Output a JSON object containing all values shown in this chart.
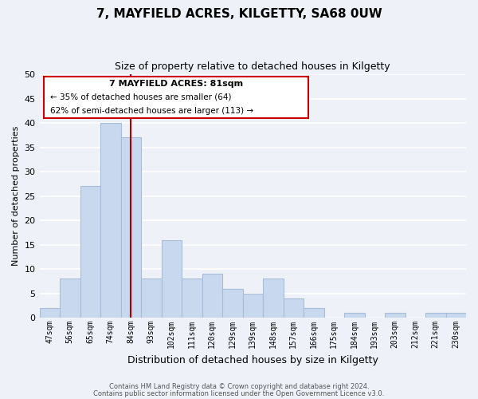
{
  "title": "7, MAYFIELD ACRES, KILGETTY, SA68 0UW",
  "subtitle": "Size of property relative to detached houses in Kilgetty",
  "xlabel": "Distribution of detached houses by size in Kilgetty",
  "ylabel": "Number of detached properties",
  "bar_labels": [
    "47sqm",
    "56sqm",
    "65sqm",
    "74sqm",
    "84sqm",
    "93sqm",
    "102sqm",
    "111sqm",
    "120sqm",
    "129sqm",
    "139sqm",
    "148sqm",
    "157sqm",
    "166sqm",
    "175sqm",
    "184sqm",
    "193sqm",
    "203sqm",
    "212sqm",
    "221sqm",
    "230sqm"
  ],
  "bar_values": [
    2,
    8,
    27,
    40,
    37,
    8,
    16,
    8,
    9,
    6,
    5,
    8,
    4,
    2,
    0,
    1,
    0,
    1,
    0,
    1,
    1
  ],
  "bar_color": "#c8d8ee",
  "bar_edge_color": "#a8bdd8",
  "highlight_bar_index": 4,
  "highlight_edge_color": "#cc0000",
  "vline_color": "#aa0000",
  "ylim": [
    0,
    50
  ],
  "yticks": [
    0,
    5,
    10,
    15,
    20,
    25,
    30,
    35,
    40,
    45,
    50
  ],
  "annotation_title": "7 MAYFIELD ACRES: 81sqm",
  "annotation_line1": "← 35% of detached houses are smaller (64)",
  "annotation_line2": "62% of semi-detached houses are larger (113) →",
  "footer_line1": "Contains HM Land Registry data © Crown copyright and database right 2024.",
  "footer_line2": "Contains public sector information licensed under the Open Government Licence v3.0.",
  "background_color": "#eef2f8",
  "plot_bg_color": "#eef2f8",
  "grid_color": "#ffffff",
  "title_fontsize": 11,
  "subtitle_fontsize": 9
}
